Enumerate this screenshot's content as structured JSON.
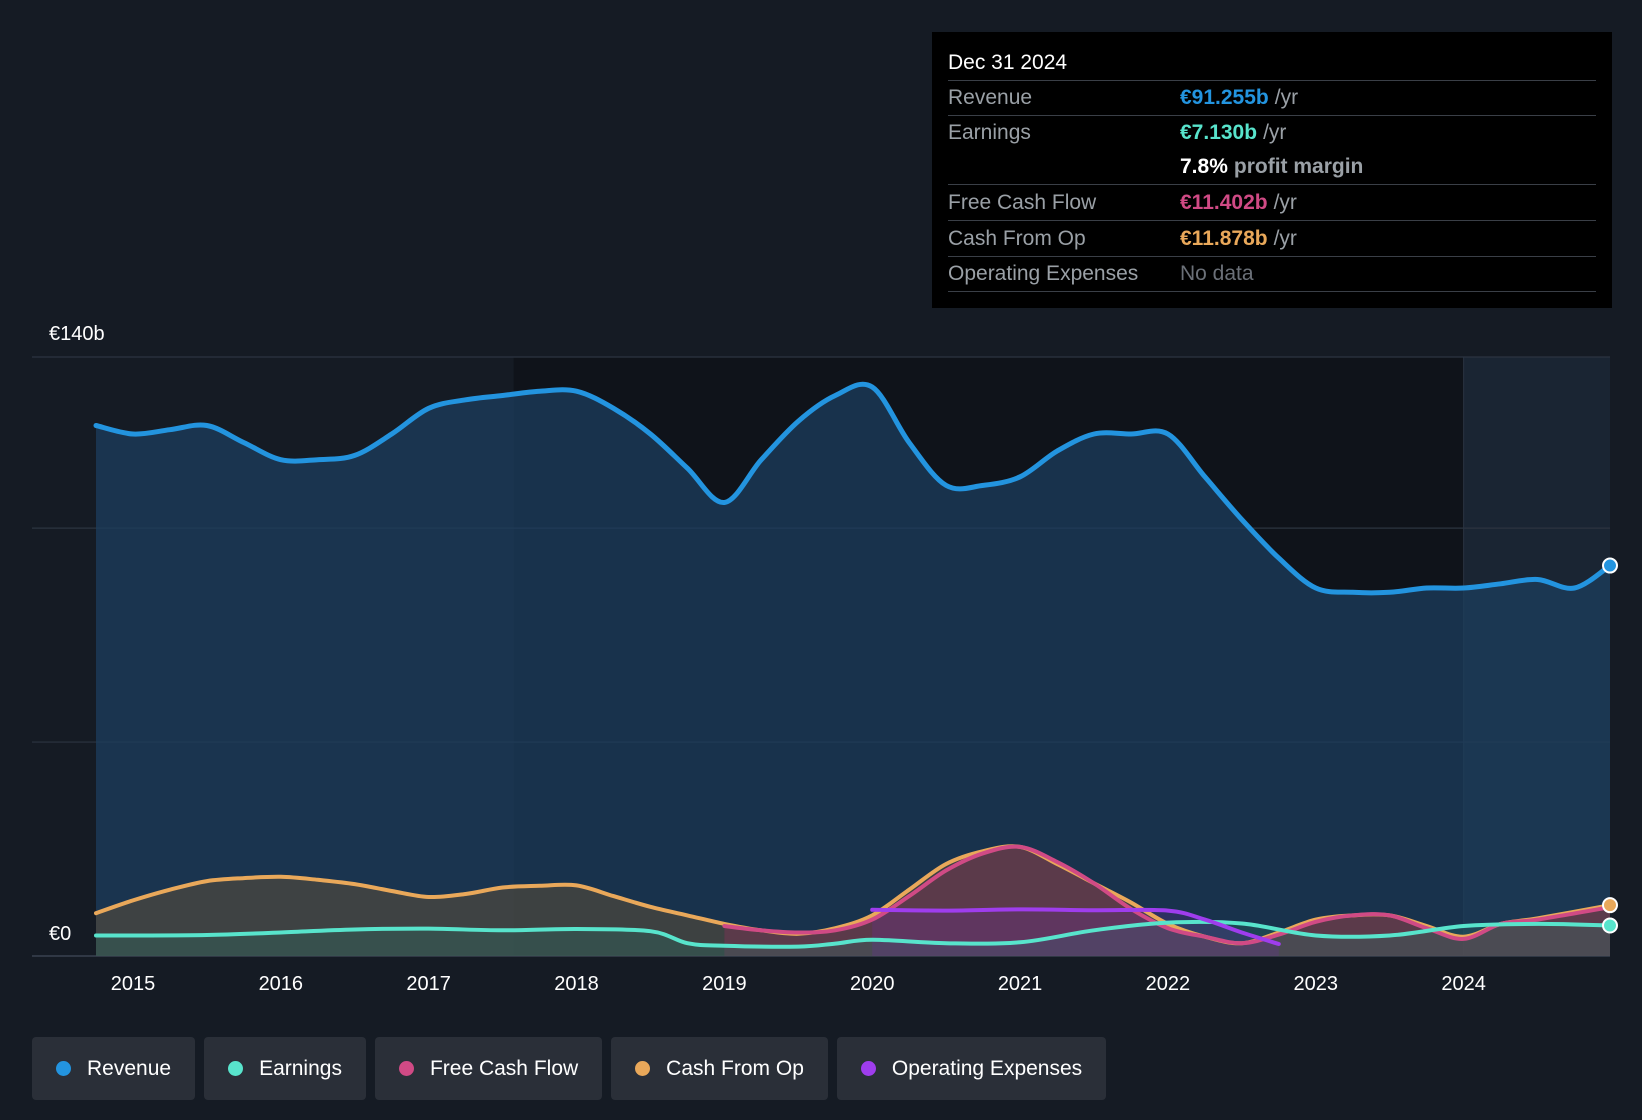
{
  "chart_data": {
    "type": "area",
    "title": "",
    "y_top_label": "€140b",
    "y_bottom_label": "€0",
    "ylim": [
      0,
      140
    ],
    "xlim": [
      2014.75,
      2024.99
    ],
    "x_ticks": [
      2015,
      2016,
      2017,
      2018,
      2019,
      2020,
      2021,
      2022,
      2023,
      2024
    ],
    "x_tick_labels": [
      "2015",
      "2016",
      "2017",
      "2018",
      "2019",
      "2020",
      "2021",
      "2022",
      "2023",
      "2024"
    ],
    "highlight_start": 2024.0,
    "series": [
      {
        "name": "Revenue",
        "color": "#2394df",
        "x": [
          2014.75,
          2015.0,
          2015.25,
          2015.5,
          2015.75,
          2016.0,
          2016.25,
          2016.5,
          2016.75,
          2017.0,
          2017.25,
          2017.5,
          2017.75,
          2018.0,
          2018.25,
          2018.5,
          2018.75,
          2019.0,
          2019.25,
          2019.5,
          2019.75,
          2020.0,
          2020.25,
          2020.5,
          2020.75,
          2021.0,
          2021.25,
          2021.5,
          2021.75,
          2022.0,
          2022.25,
          2022.5,
          2022.75,
          2023.0,
          2023.25,
          2023.5,
          2023.75,
          2024.0,
          2024.25,
          2024.5,
          2024.75,
          2024.99
        ],
        "values": [
          124,
          122,
          123,
          124,
          120,
          116,
          116,
          117,
          122,
          128,
          130,
          131,
          132,
          132,
          128,
          122,
          114,
          106,
          116,
          125,
          131,
          133,
          120,
          110,
          110,
          112,
          118,
          122,
          122,
          122,
          112,
          102,
          93,
          86,
          85,
          85,
          86,
          86,
          87,
          88,
          86,
          91.255
        ]
      },
      {
        "name": "Earnings",
        "color": "#58e4cc",
        "x": [
          2014.75,
          2015.0,
          2015.5,
          2016.0,
          2016.5,
          2017.0,
          2017.5,
          2018.0,
          2018.5,
          2018.75,
          2019.0,
          2019.5,
          2019.75,
          2020.0,
          2020.5,
          2021.0,
          2021.5,
          2022.0,
          2022.5,
          2023.0,
          2023.5,
          2024.0,
          2024.5,
          2024.99
        ],
        "values": [
          4.8,
          4.8,
          4.9,
          5.5,
          6.2,
          6.4,
          6.0,
          6.3,
          5.8,
          3.0,
          2.4,
          2.2,
          2.9,
          3.8,
          3.0,
          3.2,
          6.0,
          7.8,
          7.6,
          4.8,
          4.8,
          7.0,
          7.5,
          7.13
        ]
      },
      {
        "name": "Free Cash Flow",
        "color": "#d04a85",
        "x": [
          2019.0,
          2019.25,
          2019.5,
          2019.75,
          2020.0,
          2020.25,
          2020.5,
          2020.75,
          2021.0,
          2021.25,
          2021.5,
          2021.75,
          2022.0,
          2022.25,
          2022.5,
          2022.75,
          2023.0,
          2023.25,
          2023.5,
          2023.75,
          2024.0,
          2024.25,
          2024.5,
          2024.99
        ],
        "values": [
          7,
          6,
          5.5,
          6,
          8.5,
          14,
          20,
          24,
          25.5,
          22,
          17,
          11,
          6.5,
          4.5,
          3.0,
          5.0,
          8,
          9.5,
          9.5,
          6.5,
          4.0,
          7.5,
          8.5,
          11.402
        ]
      },
      {
        "name": "Cash From Op",
        "color": "#e9a85a",
        "x": [
          2014.75,
          2015.0,
          2015.25,
          2015.5,
          2015.75,
          2016.0,
          2016.25,
          2016.5,
          2016.75,
          2017.0,
          2017.25,
          2017.5,
          2017.75,
          2018.0,
          2018.25,
          2018.5,
          2018.75,
          2019.0,
          2019.25,
          2019.5,
          2019.75,
          2020.0,
          2020.25,
          2020.5,
          2020.75,
          2021.0,
          2021.25,
          2021.5,
          2021.75,
          2022.0,
          2022.25,
          2022.5,
          2022.75,
          2023.0,
          2023.25,
          2023.5,
          2023.75,
          2024.0,
          2024.25,
          2024.5,
          2024.99
        ],
        "values": [
          10,
          13,
          15.5,
          17.5,
          18.2,
          18.5,
          17.8,
          16.8,
          15.2,
          13.8,
          14.5,
          16.0,
          16.4,
          16.5,
          14.0,
          11.5,
          9.5,
          7.5,
          6.0,
          5.2,
          6.5,
          9.5,
          15.5,
          21.5,
          24.5,
          25.5,
          21.5,
          17.0,
          12.5,
          7.5,
          4.5,
          3.0,
          5.5,
          8.5,
          9.5,
          9.5,
          7.0,
          4.5,
          7.5,
          8.8,
          11.878
        ]
      },
      {
        "name": "Operating Expenses",
        "color": "#9f3ded",
        "x": [
          2020.0,
          2020.5,
          2021.0,
          2021.5,
          2022.0,
          2022.25,
          2022.5,
          2022.75
        ],
        "values": [
          10.8,
          10.6,
          10.9,
          10.7,
          10.6,
          8.5,
          5.5,
          2.8
        ]
      }
    ]
  },
  "tooltip": {
    "date": "Dec 31 2024",
    "rows": [
      {
        "label": "Revenue",
        "value": "€91.255b",
        "unit": "/yr",
        "color": "#2394df"
      },
      {
        "label": "Earnings",
        "value": "€7.130b",
        "unit": "/yr",
        "color": "#58e4cc"
      },
      {
        "label": "",
        "value": "7.8%",
        "unit": "profit margin",
        "color": "#ffffff"
      },
      {
        "label": "Free Cash Flow",
        "value": "€11.402b",
        "unit": "/yr",
        "color": "#d04a85"
      },
      {
        "label": "Cash From Op",
        "value": "€11.878b",
        "unit": "/yr",
        "color": "#e9a85a"
      },
      {
        "label": "Operating Expenses",
        "value": "No data",
        "unit": "",
        "color": "#6b7078"
      }
    ]
  },
  "legend": [
    {
      "label": "Revenue",
      "color": "#2394df"
    },
    {
      "label": "Earnings",
      "color": "#58e4cc"
    },
    {
      "label": "Free Cash Flow",
      "color": "#d04a85"
    },
    {
      "label": "Cash From Op",
      "color": "#e9a85a"
    },
    {
      "label": "Operating Expenses",
      "color": "#9f3ded"
    }
  ]
}
